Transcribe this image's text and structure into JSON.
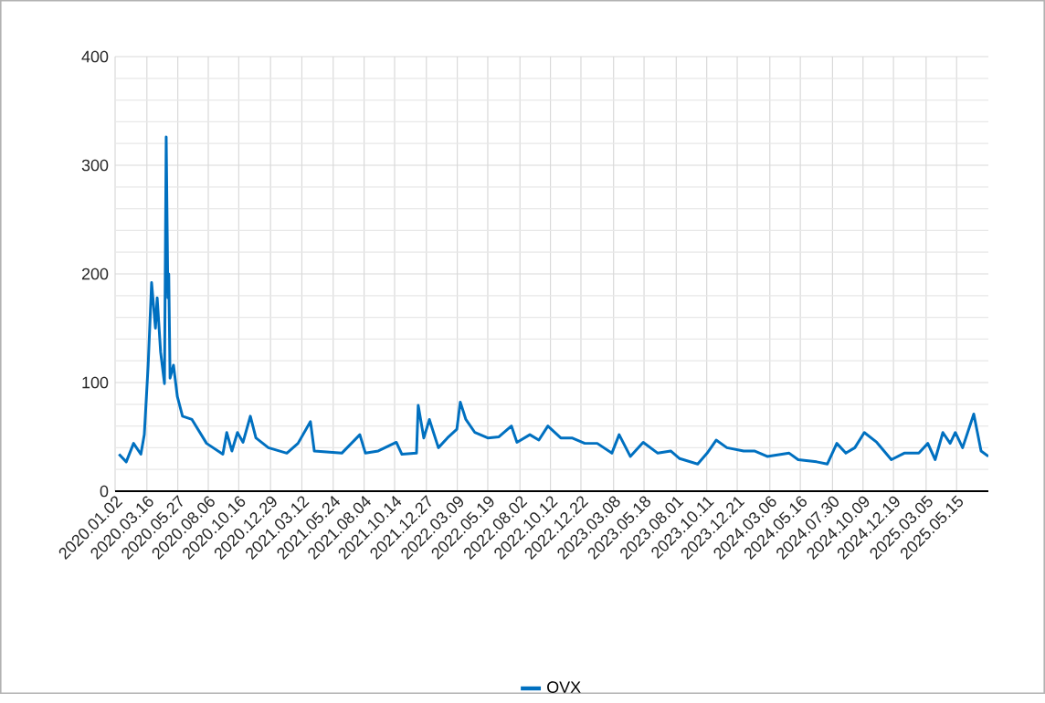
{
  "chart_data": {
    "type": "line",
    "grid": true,
    "legend": "bottom",
    "marker": "none",
    "line_style": "solid",
    "xlim": [
      "2020-01-02",
      "2025-07-28"
    ],
    "ylim": [
      0,
      400
    ],
    "yticks": [
      0,
      100,
      200,
      300,
      400
    ],
    "xticks": [
      {
        "value": "2020-01-02",
        "label": "2020.01.02"
      },
      {
        "value": "2020-03-16",
        "label": "2020.03.16"
      },
      {
        "value": "2020-05-27",
        "label": "2020.05.27"
      },
      {
        "value": "2020-08-06",
        "label": "2020.08.06"
      },
      {
        "value": "2020-10-16",
        "label": "2020.10.16"
      },
      {
        "value": "2020-12-29",
        "label": "2020.12.29"
      },
      {
        "value": "2021-03-12",
        "label": "2021.03.12"
      },
      {
        "value": "2021-05-24",
        "label": "2021.05.24"
      },
      {
        "value": "2021-08-04",
        "label": "2021.08.04"
      },
      {
        "value": "2021-10-14",
        "label": "2021.10.14"
      },
      {
        "value": "2021-12-27",
        "label": "2021.12.27"
      },
      {
        "value": "2022-03-09",
        "label": "2022.03.09"
      },
      {
        "value": "2022-05-19",
        "label": "2022.05.19"
      },
      {
        "value": "2022-08-02",
        "label": "2022.08.02"
      },
      {
        "value": "2022-10-12",
        "label": "2022.10.12"
      },
      {
        "value": "2022-12-22",
        "label": "2022.12.22"
      },
      {
        "value": "2023-03-08",
        "label": "2023.03.08"
      },
      {
        "value": "2023-05-18",
        "label": "2023.05.18"
      },
      {
        "value": "2023-08-01",
        "label": "2023.08.01"
      },
      {
        "value": "2023-10-11",
        "label": "2023.10.11"
      },
      {
        "value": "2023-12-21",
        "label": "2023.12.21"
      },
      {
        "value": "2024-03-06",
        "label": "2024.03.06"
      },
      {
        "value": "2024-05-16",
        "label": "2024.05.16"
      },
      {
        "value": "2024-07-30",
        "label": "2024.07.30"
      },
      {
        "value": "2024-10-09",
        "label": "2024.10.09"
      },
      {
        "value": "2024-12-19",
        "label": "2024.12.19"
      },
      {
        "value": "2025-03-05",
        "label": "2025.03.05"
      },
      {
        "value": "2025-05-15",
        "label": "2025.05.15"
      }
    ],
    "series": [
      {
        "name": "OVX",
        "color": "#0070c0",
        "x": [
          "2020-01-11",
          "2020-01-28",
          "2020-02-14",
          "2020-03-02",
          "2020-03-10",
          "2020-03-19",
          "2020-03-27",
          "2020-04-05",
          "2020-04-09",
          "2020-04-17",
          "2020-04-26",
          "2020-04-30",
          "2020-05-04",
          "2020-05-06",
          "2020-05-09",
          "2020-05-17",
          "2020-05-26",
          "2020-06-07",
          "2020-06-29",
          "2020-08-02",
          "2020-09-09",
          "2020-09-18",
          "2020-09-30",
          "2020-10-13",
          "2020-10-26",
          "2020-11-12",
          "2020-11-25",
          "2020-12-24",
          "2021-02-05",
          "2021-03-03",
          "2021-04-01",
          "2021-04-10",
          "2021-06-13",
          "2021-07-25",
          "2021-08-07",
          "2021-09-06",
          "2021-10-18",
          "2021-10-31",
          "2021-12-04",
          "2021-12-08",
          "2021-12-21",
          "2022-01-03",
          "2022-01-24",
          "2022-02-14",
          "2022-03-08",
          "2022-03-16",
          "2022-03-29",
          "2022-04-19",
          "2022-05-19",
          "2022-06-14",
          "2022-07-13",
          "2022-07-26",
          "2022-08-25",
          "2022-09-15",
          "2022-10-06",
          "2022-11-05",
          "2022-12-01",
          "2022-12-31",
          "2023-01-29",
          "2023-03-04",
          "2023-03-21",
          "2023-04-16",
          "2023-05-16",
          "2023-06-19",
          "2023-07-19",
          "2023-08-09",
          "2023-09-20",
          "2023-10-12",
          "2023-11-02",
          "2023-11-27",
          "2024-01-05",
          "2024-01-30",
          "2024-02-29",
          "2024-04-20",
          "2024-05-11",
          "2024-06-23",
          "2024-07-18",
          "2024-08-09",
          "2024-08-30",
          "2024-09-20",
          "2024-10-12",
          "2024-11-10",
          "2024-12-14",
          "2025-01-13",
          "2025-02-16",
          "2025-03-09",
          "2025-03-26",
          "2025-04-13",
          "2025-04-30",
          "2025-05-12",
          "2025-05-29",
          "2025-06-24",
          "2025-07-11",
          "2025-07-28"
        ],
        "values": [
          34,
          27,
          44,
          34,
          52,
          116,
          192,
          150,
          178,
          128,
          99,
          326,
          178,
          200,
          104,
          116,
          87,
          69,
          66,
          44,
          34,
          54,
          37,
          54,
          45,
          69,
          49,
          40,
          35,
          44,
          64,
          37,
          35,
          52,
          35,
          37,
          45,
          34,
          35,
          79,
          49,
          66,
          40,
          49,
          57,
          82,
          66,
          54,
          49,
          50,
          60,
          45,
          52,
          47,
          60,
          49,
          49,
          44,
          44,
          35,
          52,
          32,
          45,
          35,
          37,
          30,
          25,
          35,
          47,
          40,
          37,
          37,
          32,
          35,
          29,
          27,
          25,
          44,
          35,
          40,
          54,
          45,
          29,
          35,
          35,
          44,
          29,
          54,
          44,
          54,
          40,
          71,
          37,
          32
        ]
      }
    ]
  }
}
